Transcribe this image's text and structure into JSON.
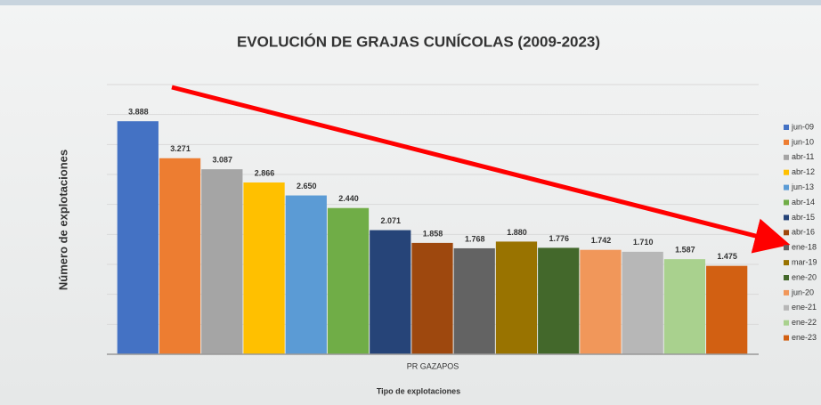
{
  "chart_data": {
    "type": "bar",
    "title": "EVOLUCIÓN DE GRAJAS CUNÍCOLAS (2009-2023)",
    "y_label": "Número de explotaciones",
    "x_label": "Tipo de explotaciones",
    "categories": [
      "PR GAZAPOS"
    ],
    "ylim": [
      0,
      4500
    ],
    "yticks": [
      0,
      500,
      1000,
      1500,
      2000,
      2500,
      3000,
      3500,
      4000,
      4500
    ],
    "grid": true,
    "legend": "right",
    "series": [
      {
        "name": "jun-09",
        "color": "#4472c4",
        "values": [
          3888
        ],
        "value_labels": [
          "3.888"
        ]
      },
      {
        "name": "jun-10",
        "color": "#ed7d31",
        "values": [
          3271
        ],
        "value_labels": [
          "3.271"
        ]
      },
      {
        "name": "abr-11",
        "color": "#a5a5a5",
        "values": [
          3087
        ],
        "value_labels": [
          "3.087"
        ]
      },
      {
        "name": "abr-12",
        "color": "#ffc000",
        "values": [
          2866
        ],
        "value_labels": [
          "2.866"
        ]
      },
      {
        "name": "jun-13",
        "color": "#5b9bd5",
        "values": [
          2650
        ],
        "value_labels": [
          "2.650"
        ]
      },
      {
        "name": "abr-14",
        "color": "#70ad47",
        "values": [
          2440
        ],
        "value_labels": [
          "2.440"
        ]
      },
      {
        "name": "abr-15",
        "color": "#264478",
        "values": [
          2071
        ],
        "value_labels": [
          "2.071"
        ]
      },
      {
        "name": "abr-16",
        "color": "#9e480e",
        "values": [
          1858
        ],
        "value_labels": [
          "1.858"
        ]
      },
      {
        "name": "ene-18",
        "color": "#636363",
        "values": [
          1768
        ],
        "value_labels": [
          "1.768"
        ]
      },
      {
        "name": "mar-19",
        "color": "#997300",
        "values": [
          1880
        ],
        "value_labels": [
          "1.880"
        ]
      },
      {
        "name": "ene-20",
        "color": "#43682b",
        "values": [
          1776
        ],
        "value_labels": [
          "1.776"
        ]
      },
      {
        "name": "jun-20",
        "color": "#f1975a",
        "values": [
          1742
        ],
        "value_labels": [
          "1.742"
        ]
      },
      {
        "name": "ene-21",
        "color": "#b7b7b7",
        "values": [
          1710
        ],
        "value_labels": [
          "1.710"
        ]
      },
      {
        "name": "ene-22",
        "color": "#a9d18e",
        "values": [
          1587
        ],
        "value_labels": [
          "1.587"
        ]
      },
      {
        "name": "ene-23",
        "color": "#d26012",
        "values": [
          1475
        ],
        "value_labels": [
          "1.475"
        ]
      }
    ]
  }
}
